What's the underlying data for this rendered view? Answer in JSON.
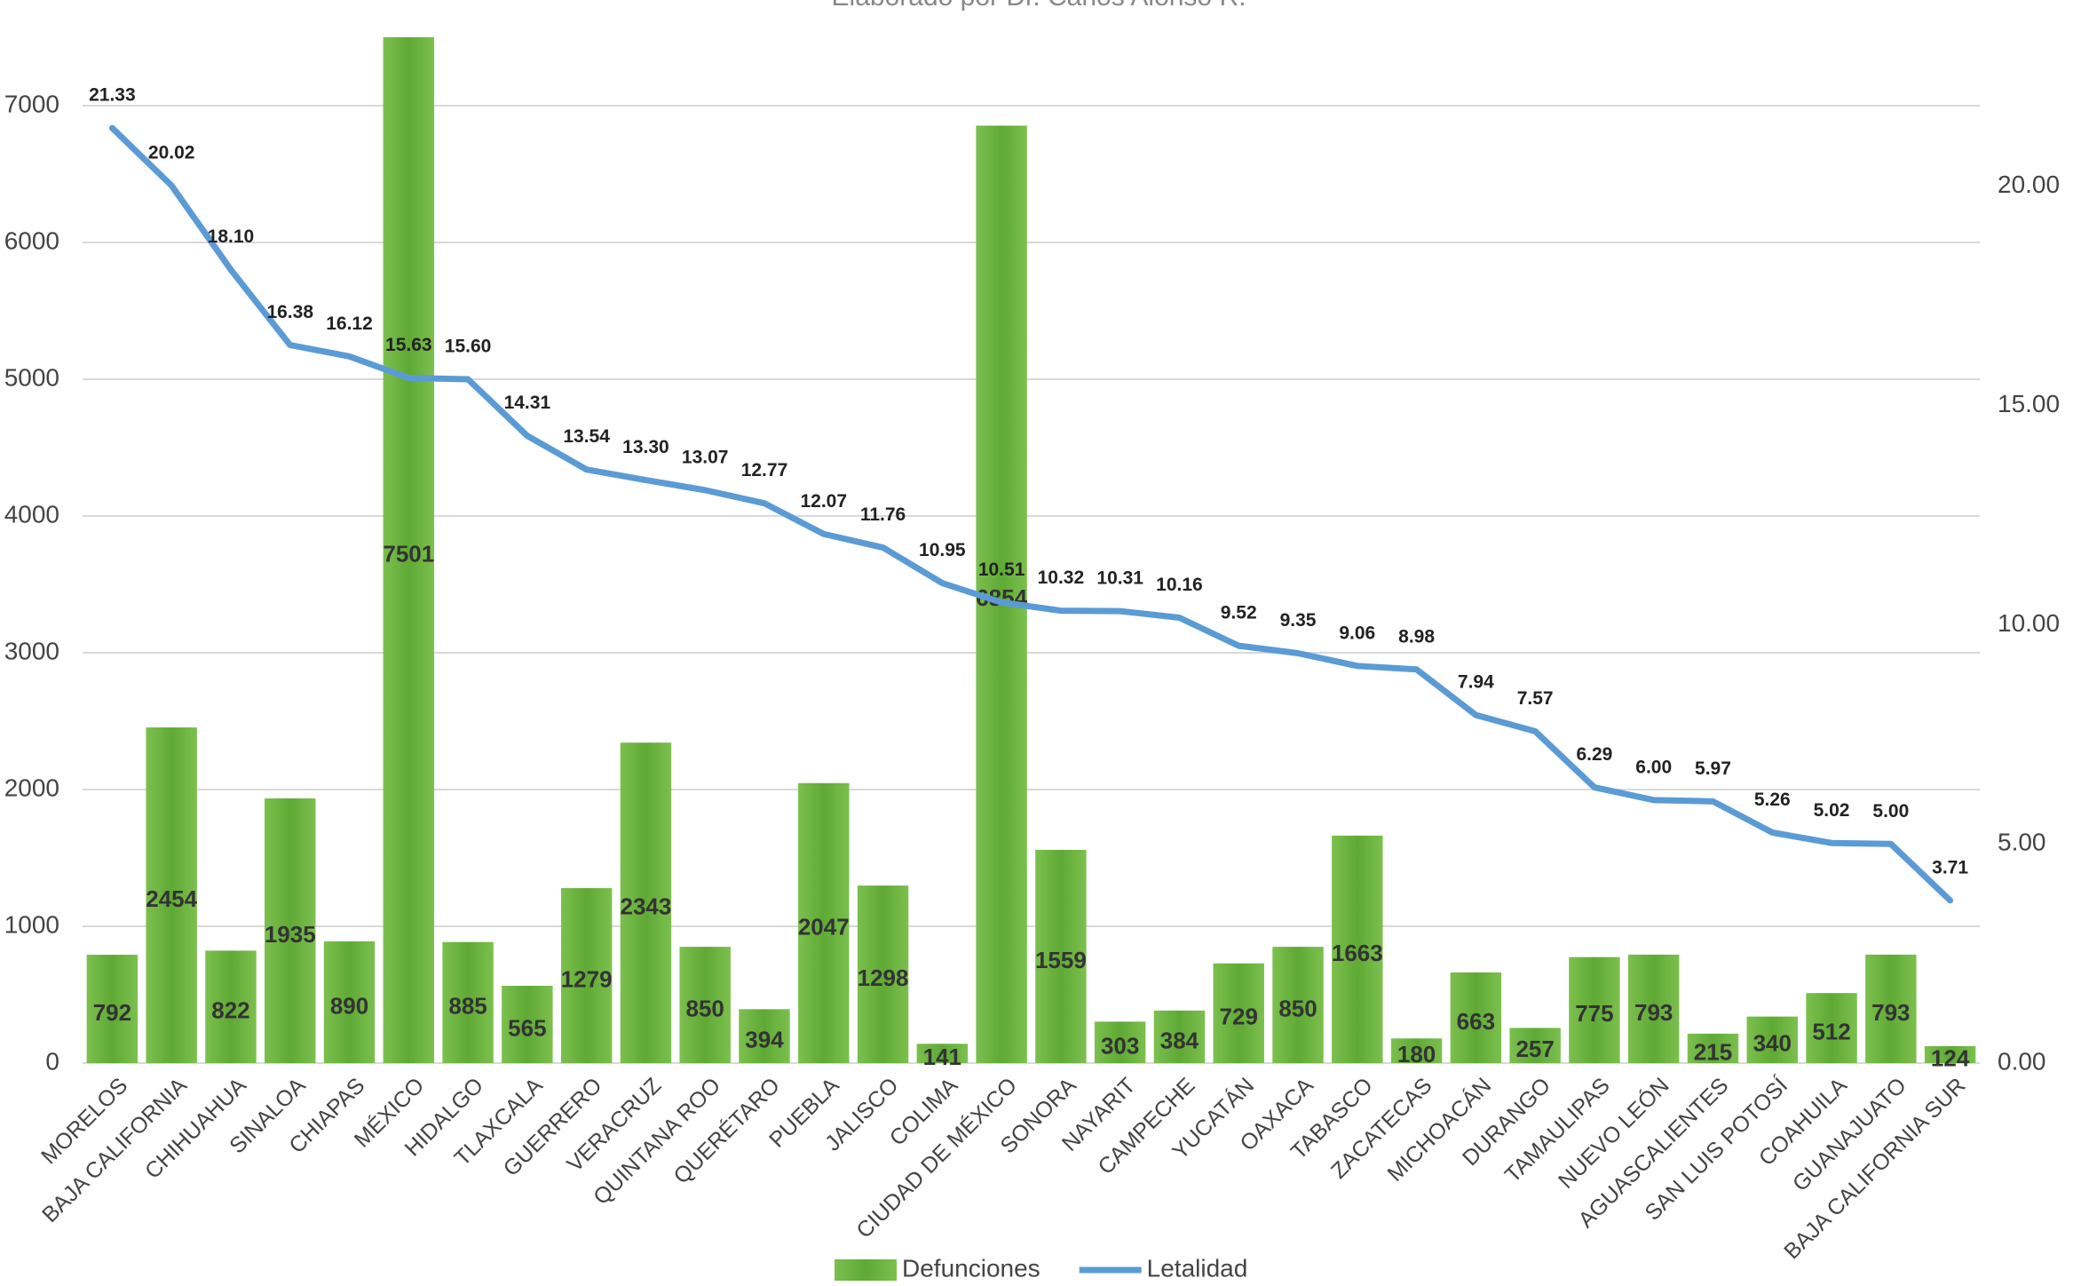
{
  "chart_data": {
    "type": "bar",
    "subtitle": "Elaborado por Dr. Carlos Alonso R.",
    "categories": [
      "MORELOS",
      "BAJA CALIFORNIA",
      "CHIHUAHUA",
      "SINALOA",
      "CHIAPAS",
      "MÉXICO",
      "HIDALGO",
      "TLAXCALA",
      "GUERRERO",
      "VERACRUZ",
      "QUINTANA ROO",
      "QUERÉTARO",
      "PUEBLA",
      "JALISCO",
      "COLIMA",
      "CIUDAD DE MÉXICO",
      "SONORA",
      "NAYARIT",
      "CAMPECHE",
      "YUCATÁN",
      "OAXACA",
      "TABASCO",
      "ZACATECAS",
      "MICHOACÁN",
      "DURANGO",
      "TAMAULIPAS",
      "NUEVO LEÓN",
      "AGUASCALIENTES",
      "SAN LUIS POTOSÍ",
      "COAHUILA",
      "GUANAJUATO",
      "BAJA CALIFORNIA SUR"
    ],
    "series": [
      {
        "name": "Defunciones",
        "color": "#6aaf3d",
        "values": [
          792,
          2454,
          822,
          1935,
          890,
          7501,
          885,
          565,
          1279,
          2343,
          850,
          394,
          2047,
          1298,
          141,
          6854,
          1559,
          303,
          384,
          729,
          850,
          1663,
          180,
          663,
          257,
          775,
          793,
          215,
          340,
          512,
          793,
          124
        ]
      },
      {
        "name": "Letalidad",
        "color": "#5b9bd5",
        "axis": "y2",
        "values": [
          21.33,
          20.02,
          18.1,
          16.38,
          16.12,
          15.63,
          15.6,
          14.31,
          13.54,
          13.3,
          13.07,
          12.77,
          12.07,
          11.76,
          10.95,
          10.51,
          10.32,
          10.31,
          10.16,
          9.52,
          9.35,
          9.06,
          8.98,
          7.94,
          7.57,
          6.29,
          6.0,
          5.97,
          5.26,
          5.02,
          5.0,
          3.71
        ],
        "value_labels": [
          "21.33",
          "20.02",
          "18.10",
          "16.38",
          "16.12",
          "15.63",
          "15.60",
          "14.31",
          "13.54",
          "13.30",
          "13.07",
          "12.77",
          "12.07",
          "11.76",
          "10.95",
          "10.51",
          "10.32",
          "10.31",
          "10.16",
          "9.52",
          "9.35",
          "9.06",
          "8.98",
          "7.94",
          "7.57",
          "6.29",
          "6.00",
          "5.97",
          "5.26",
          "5.02",
          "5.00",
          "3.71"
        ]
      }
    ],
    "ylim": [
      0,
      7500
    ],
    "yticks": [
      0,
      1000,
      2000,
      3000,
      4000,
      5000,
      6000,
      7000
    ],
    "y2lim": [
      0,
      23.4
    ],
    "y2ticks": [
      {
        "value": 0,
        "label": "0.00"
      },
      {
        "value": 5,
        "label": "5.00"
      },
      {
        "value": 10,
        "label": "10.00"
      },
      {
        "value": 15,
        "label": "15.00"
      },
      {
        "value": 20,
        "label": "20.00"
      }
    ],
    "grid": true,
    "legend": "bottom"
  }
}
